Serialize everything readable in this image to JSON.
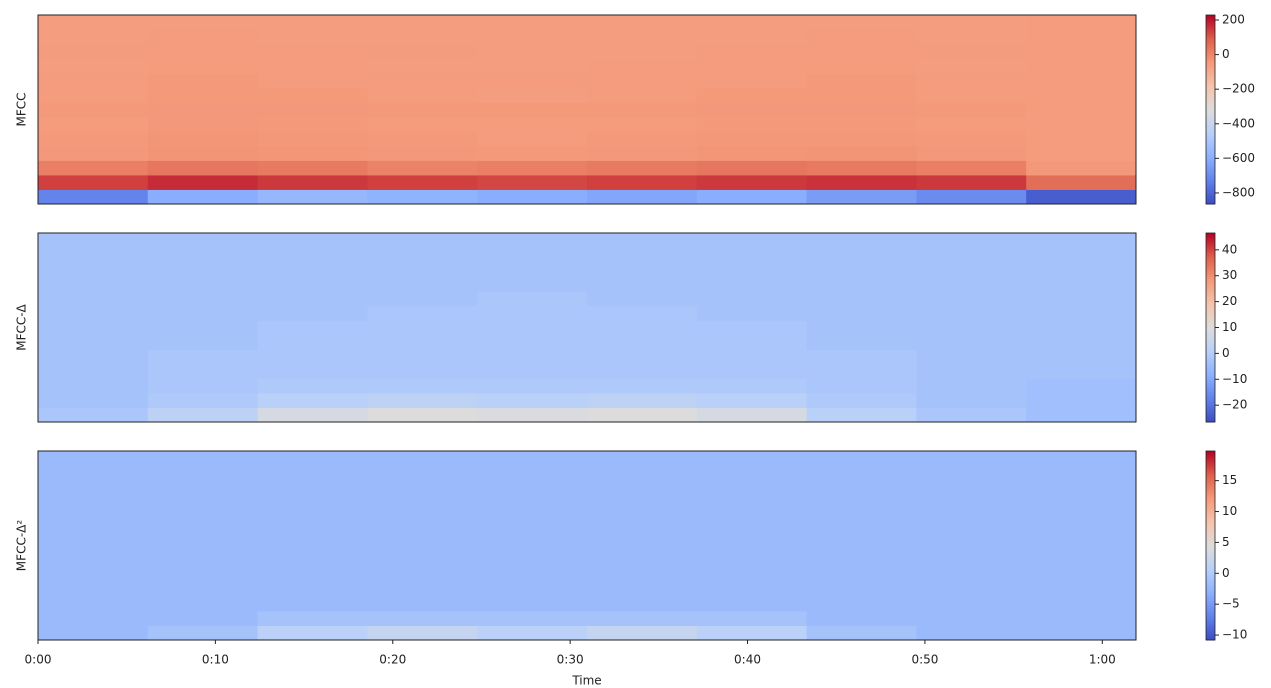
{
  "chart_data": [
    {
      "type": "heatmap",
      "ylabel": "MFCC",
      "xlim": [
        0,
        61.9
      ],
      "zlim": [
        -864,
        229
      ],
      "colormap": "coolwarm",
      "zticks": [
        200,
        0,
        {
          "value": -200,
          "label": "−200"
        },
        {
          "value": -400,
          "label": "−400"
        },
        {
          "value": -600,
          "label": "−600"
        },
        {
          "value": -800,
          "label": "−800"
        }
      ],
      "z": [
        [
          -720,
          -600,
          -560,
          -580,
          -600,
          -620,
          -600,
          -650,
          -700,
          -820
        ],
        [
          140,
          170,
          150,
          140,
          130,
          140,
          150,
          160,
          150,
          60
        ],
        [
          20,
          40,
          30,
          10,
          20,
          30,
          40,
          30,
          20,
          -40
        ],
        [
          -40,
          -30,
          -35,
          -40,
          -45,
          -40,
          -35,
          -30,
          -40,
          -50
        ],
        [
          -45,
          -35,
          -40,
          -45,
          -50,
          -45,
          -40,
          -40,
          -45,
          -50
        ],
        [
          -50,
          -40,
          -45,
          -50,
          -50,
          -50,
          -45,
          -45,
          -50,
          -50
        ],
        [
          -45,
          -40,
          -40,
          -45,
          -45,
          -45,
          -40,
          -40,
          -45,
          -50
        ],
        [
          -50,
          -45,
          -45,
          -50,
          -55,
          -50,
          -45,
          -45,
          -50,
          -50
        ],
        [
          -50,
          -45,
          -50,
          -50,
          -50,
          -50,
          -50,
          -45,
          -50,
          -50
        ],
        [
          -55,
          -50,
          -50,
          -55,
          -55,
          -50,
          -50,
          -50,
          -55,
          -50
        ],
        [
          -50,
          -50,
          -50,
          -50,
          -55,
          -55,
          -50,
          -50,
          -50,
          -50
        ],
        [
          -55,
          -50,
          -55,
          -55,
          -55,
          -55,
          -55,
          -50,
          -55,
          -50
        ],
        [
          -55,
          -55,
          -55,
          -55,
          -55,
          -55,
          -55,
          -55,
          -55,
          -50
        ]
      ]
    },
    {
      "type": "heatmap",
      "ylabel": "MFCC-Δ",
      "xlim": [
        0,
        61.9
      ],
      "zlim": [
        -26.5,
        46.5
      ],
      "colormap": "coolwarm",
      "zticks": [
        40,
        30,
        20,
        10,
        0,
        {
          "value": -10,
          "label": "−10"
        },
        {
          "value": -20,
          "label": "−20"
        }
      ],
      "z": [
        [
          -2,
          2,
          8,
          10,
          9,
          10,
          8,
          1,
          -2,
          -4
        ],
        [
          -3,
          -1,
          1,
          2,
          1,
          2,
          1,
          -1,
          -3,
          -4
        ],
        [
          -3,
          -2,
          -1,
          -1,
          -1,
          -1,
          -1,
          -2,
          -3,
          -4
        ],
        [
          -3,
          -2,
          -2,
          -2,
          -2,
          -2,
          -2,
          -2,
          -3,
          -3
        ],
        [
          -3,
          -2,
          -2,
          -2,
          -2,
          -2,
          -2,
          -2,
          -3,
          -3
        ],
        [
          -3,
          -3,
          -2,
          -2,
          -2,
          -2,
          -2,
          -3,
          -3,
          -3
        ],
        [
          -3,
          -3,
          -2,
          -2,
          -2,
          -2,
          -2,
          -3,
          -3,
          -3
        ],
        [
          -3,
          -3,
          -3,
          -2,
          -2,
          -2,
          -3,
          -3,
          -3,
          -3
        ],
        [
          -3,
          -3,
          -3,
          -3,
          -2,
          -3,
          -3,
          -3,
          -3,
          -3
        ],
        [
          -3,
          -3,
          -3,
          -3,
          -3,
          -3,
          -3,
          -3,
          -3,
          -3
        ],
        [
          -3,
          -3,
          -3,
          -3,
          -3,
          -3,
          -3,
          -3,
          -3,
          -3
        ],
        [
          -3,
          -3,
          -3,
          -3,
          -3,
          -3,
          -3,
          -3,
          -3,
          -3
        ],
        [
          -3,
          -3,
          -3,
          -3,
          -3,
          -3,
          -3,
          -3,
          -3,
          -3
        ]
      ]
    },
    {
      "type": "heatmap",
      "ylabel": "MFCC-Δ²",
      "xlim": [
        0,
        61.9
      ],
      "zlim": [
        -10.8,
        19.8
      ],
      "colormap": "coolwarm",
      "zticks": [
        15,
        10,
        5,
        0,
        {
          "value": -5,
          "label": "−5"
        },
        {
          "value": -10,
          "label": "−10"
        }
      ],
      "xlabel": "Time",
      "xticks": [
        {
          "value": 0,
          "label": "0:00"
        },
        {
          "value": 10,
          "label": "0:10"
        },
        {
          "value": 20,
          "label": "0:20"
        },
        {
          "value": 30,
          "label": "0:30"
        },
        {
          "value": 40,
          "label": "0:40"
        },
        {
          "value": 50,
          "label": "0:50"
        },
        {
          "value": 60,
          "label": "1:00"
        }
      ],
      "z": [
        [
          -2,
          -1,
          1,
          2,
          1,
          2,
          1,
          -1,
          -2,
          -2
        ],
        [
          -2,
          -2,
          -1,
          -1,
          -1,
          -1,
          -1,
          -2,
          -2,
          -2
        ],
        [
          -2,
          -2,
          -2,
          -2,
          -2,
          -2,
          -2,
          -2,
          -2,
          -2
        ],
        [
          -2,
          -2,
          -2,
          -2,
          -2,
          -2,
          -2,
          -2,
          -2,
          -2
        ],
        [
          -2,
          -2,
          -2,
          -2,
          -2,
          -2,
          -2,
          -2,
          -2,
          -2
        ],
        [
          -2,
          -2,
          -2,
          -2,
          -2,
          -2,
          -2,
          -2,
          -2,
          -2
        ],
        [
          -2,
          -2,
          -2,
          -2,
          -2,
          -2,
          -2,
          -2,
          -2,
          -2
        ],
        [
          -2,
          -2,
          -2,
          -2,
          -2,
          -2,
          -2,
          -2,
          -2,
          -2
        ],
        [
          -2,
          -2,
          -2,
          -2,
          -2,
          -2,
          -2,
          -2,
          -2,
          -2
        ],
        [
          -2,
          -2,
          -2,
          -2,
          -2,
          -2,
          -2,
          -2,
          -2,
          -2
        ],
        [
          -2,
          -2,
          -2,
          -2,
          -2,
          -2,
          -2,
          -2,
          -2,
          -2
        ],
        [
          -2,
          -2,
          -2,
          -2,
          -2,
          -2,
          -2,
          -2,
          -2,
          -2
        ],
        [
          -2,
          -2,
          -2,
          -2,
          -2,
          -2,
          -2,
          -2,
          -2,
          -2
        ]
      ]
    }
  ]
}
